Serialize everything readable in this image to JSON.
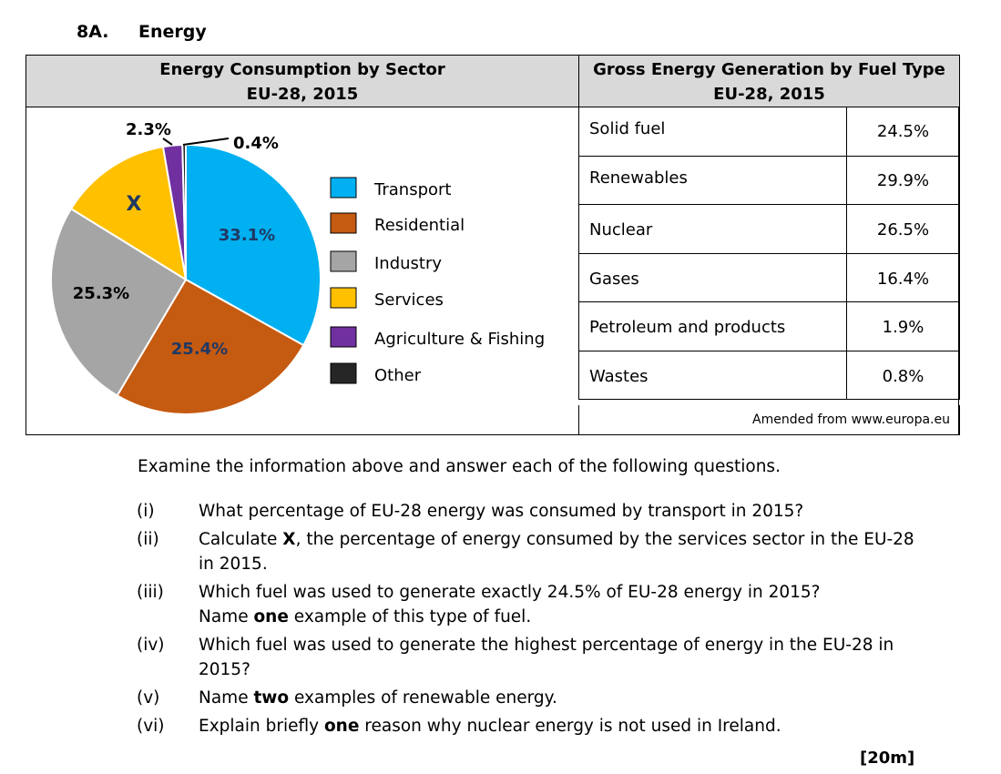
{
  "question": {
    "number": "8A.",
    "title": "Energy"
  },
  "left_panel": {
    "title_line1": "Energy Consumption by Sector",
    "title_line2": "EU-28, 2015"
  },
  "right_panel": {
    "title_line1": "Gross Energy Generation by Fuel Type",
    "title_line2": "EU-28, 2015"
  },
  "chart_data": {
    "type": "pie",
    "slices": [
      {
        "label": "Transport",
        "value": 33.1,
        "display": "33.1%",
        "color": "#00b0f0"
      },
      {
        "label": "Residential",
        "value": 25.4,
        "display": "25.4%",
        "color": "#c55a11"
      },
      {
        "label": "Industry",
        "value": 25.3,
        "display": "25.3%",
        "color": "#a5a5a5"
      },
      {
        "label": "Services",
        "value": 13.5,
        "display": "X",
        "color": "#ffc000"
      },
      {
        "label": "Agriculture & Fishing",
        "value": 2.3,
        "display": "2.3%",
        "color": "#7030a0"
      },
      {
        "label": "Other",
        "value": 0.4,
        "display": "0.4%",
        "color": "#262626"
      }
    ],
    "legend_position": "right"
  },
  "table": {
    "rows": [
      {
        "fuel": "Solid fuel",
        "value": "24.5%"
      },
      {
        "fuel": "Renewables",
        "value": "29.9%"
      },
      {
        "fuel": "Nuclear",
        "value": "26.5%"
      },
      {
        "fuel": "Gases",
        "value": "16.4%"
      },
      {
        "fuel": "Petroleum and products",
        "value": "1.9%"
      },
      {
        "fuel": "Wastes",
        "value": "0.8%"
      }
    ],
    "source": "Amended from www.europa.eu"
  },
  "intro": "Examine the information above and answer each of the following questions.",
  "questions": [
    {
      "num": "(i)",
      "html": "What percentage of EU-28 energy was consumed by transport in 2015?"
    },
    {
      "num": "(ii)",
      "html": "Calculate <b>X</b>, the percentage of energy consumed by the services sector in the EU-28 in 2015."
    },
    {
      "num": "(iii)",
      "html": "Which fuel was used to generate exactly 24.5% of EU-28 energy in 2015?<br>Name <b>one</b> example of this type of fuel."
    },
    {
      "num": "(iv)",
      "html": "Which fuel was used to generate the highest percentage of energy in the EU-28 in 2015?"
    },
    {
      "num": "(v)",
      "html": "Name <b>two</b> examples of renewable energy."
    },
    {
      "num": "(vi)",
      "html": "Explain briefly <b>one</b> reason why nuclear energy is not used in Ireland."
    }
  ],
  "marks": "[20m]"
}
